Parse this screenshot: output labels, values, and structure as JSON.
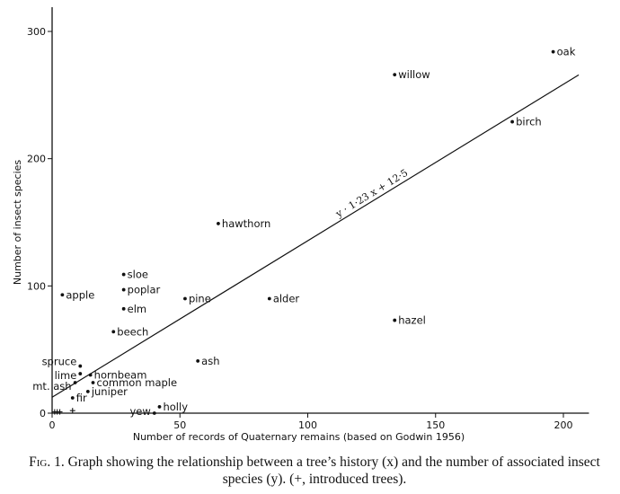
{
  "chart_data": {
    "type": "scatter",
    "xlabel": "Number of records of Quaternary remains (based on Godwin 1956)",
    "ylabel": "Number of insect species",
    "xlim": [
      0,
      210
    ],
    "ylim": [
      0,
      320
    ],
    "xticks": [
      "0",
      "50",
      "100",
      "150",
      "200"
    ],
    "yticks": [
      "0",
      "100",
      "200",
      "300"
    ],
    "points": [
      {
        "label": "oak",
        "x": 196,
        "y": 284
      },
      {
        "label": "willow",
        "x": 134,
        "y": 266
      },
      {
        "label": "birch",
        "x": 180,
        "y": 229
      },
      {
        "label": "hawthorn",
        "x": 65,
        "y": 149
      },
      {
        "label": "sloe",
        "x": 28,
        "y": 109
      },
      {
        "label": "poplar",
        "x": 28,
        "y": 97
      },
      {
        "label": "elm",
        "x": 28,
        "y": 82
      },
      {
        "label": "apple",
        "x": 4,
        "y": 93
      },
      {
        "label": "pine",
        "x": 52,
        "y": 90
      },
      {
        "label": "alder",
        "x": 85,
        "y": 90
      },
      {
        "label": "hazel",
        "x": 134,
        "y": 73
      },
      {
        "label": "beech",
        "x": 24,
        "y": 64
      },
      {
        "label": "ash",
        "x": 57,
        "y": 41
      },
      {
        "label": "spruce",
        "x": 11,
        "y": 37
      },
      {
        "label": "lime",
        "x": 11,
        "y": 31
      },
      {
        "label": "hornbeam",
        "x": 15,
        "y": 30
      },
      {
        "label": "mt. ash",
        "x": 9,
        "y": 24
      },
      {
        "label": "common maple",
        "x": 16,
        "y": 24
      },
      {
        "label": "juniper",
        "x": 14,
        "y": 17
      },
      {
        "label": "fir",
        "x": 8,
        "y": 12
      },
      {
        "label": "yew",
        "x": 40,
        "y": 0
      },
      {
        "label": "holly",
        "x": 42,
        "y": 5
      }
    ],
    "introduced": [
      {
        "x": 1,
        "y": 1
      },
      {
        "x": 2,
        "y": 1
      },
      {
        "x": 3,
        "y": 1
      },
      {
        "x": 8,
        "y": 2
      }
    ],
    "regression": {
      "label": "y · 1·23 x + 12·5",
      "slope": 1.23,
      "intercept": 12.5,
      "x_range": [
        0,
        206
      ]
    }
  },
  "caption": {
    "lead": "Fig. 1.",
    "text": "Graph showing the relationship between a tree’s history (x) and the number of associated insect species (y). (+, introduced trees)."
  }
}
